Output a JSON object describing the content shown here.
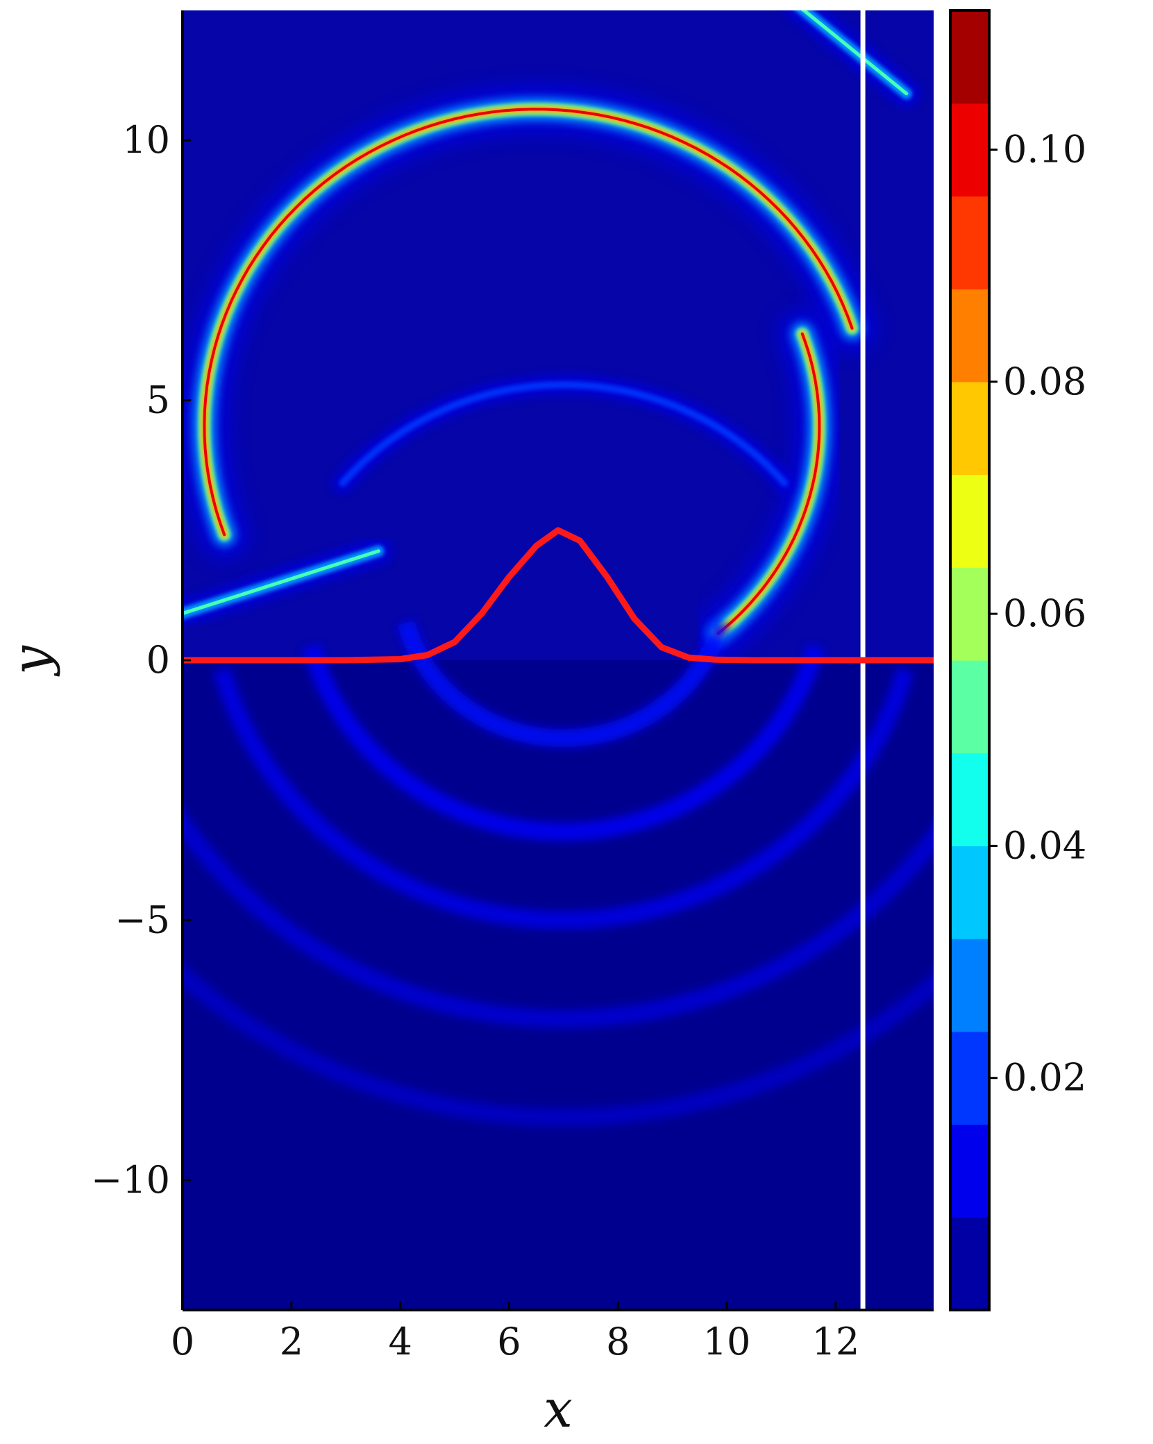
{
  "chart_data": {
    "type": "heatmap",
    "title": "",
    "xlabel": "x",
    "ylabel": "y",
    "xlim": [
      0,
      13.8
    ],
    "ylim": [
      -12.5,
      12.5
    ],
    "x_ticks": [
      0,
      2,
      4,
      6,
      8,
      10,
      12
    ],
    "x_tick_labels": [
      "0",
      "2",
      "4",
      "6",
      "8",
      "10",
      "12"
    ],
    "y_ticks": [
      -10,
      -5,
      0,
      5,
      10
    ],
    "y_tick_labels": [
      "−10",
      "−5",
      "0",
      "5",
      "10"
    ],
    "grid": false,
    "colormap": "jet",
    "colorbar": {
      "min": 0,
      "max": 0.112,
      "levels": 14,
      "ticks": [
        0.02,
        0.04,
        0.06,
        0.08,
        0.1
      ],
      "tick_labels": [
        "0.02",
        "0.04",
        "0.06",
        "0.08",
        "0.10"
      ]
    },
    "background_color": "#00008f",
    "upper_region_color": "#0505a8",
    "interface_curve": {
      "color": "#ff1a1a",
      "description_points": {
        "x": [
          0,
          3,
          4,
          4.5,
          5,
          5.5,
          6,
          6.5,
          6.9,
          7.3,
          7.8,
          8.3,
          8.8,
          9.3,
          9.8,
          10.5,
          13.8
        ],
        "y": [
          0,
          0,
          0.02,
          0.1,
          0.35,
          0.9,
          1.6,
          2.2,
          2.5,
          2.3,
          1.6,
          0.8,
          0.25,
          0.05,
          0.01,
          0,
          0
        ]
      }
    },
    "vertical_line": {
      "x": 12.5,
      "color": "#ffffff"
    },
    "features": [
      {
        "name": "outer-arc",
        "center": [
          6.5,
          4.5
        ],
        "radius": 6.1,
        "from_deg": 18,
        "to_deg": 200,
        "peak_value": 0.1
      },
      {
        "name": "right-arc",
        "center": [
          6.5,
          4.5
        ],
        "radius": 5.2,
        "from_deg": -50,
        "to_deg": 20,
        "peak_value": 0.1
      },
      {
        "name": "inner-arc",
        "center": [
          7.0,
          0.0
        ],
        "radius": 5.3,
        "from_deg": 40,
        "to_deg": 140,
        "peak_value": 0.02
      },
      {
        "name": "upper-right-streak",
        "from": [
          11.3,
          12.6
        ],
        "to": [
          13.3,
          10.9
        ],
        "peak_value": 0.05
      },
      {
        "name": "left-diagonal-streak",
        "from": [
          0.0,
          0.9
        ],
        "to": [
          3.6,
          2.1
        ],
        "peak_value": 0.05
      },
      {
        "name": "lower-ripples",
        "center": [
          7.0,
          1.5
        ],
        "radii": [
          3.0,
          4.8,
          6.5,
          8.4,
          10.3
        ],
        "peak_value": 0.015
      }
    ]
  }
}
